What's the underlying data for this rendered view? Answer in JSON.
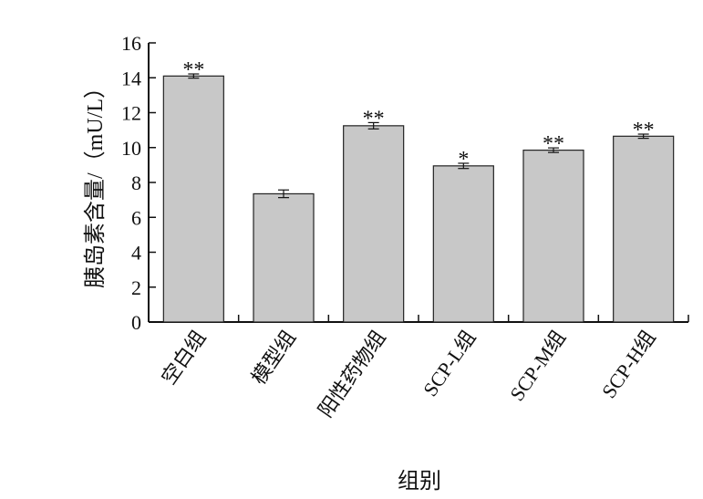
{
  "chart_data": {
    "type": "bar",
    "categories": [
      "空白组",
      "模型组",
      "阳性药物组",
      "SCP-L组",
      "SCP-M组",
      "SCP-H组"
    ],
    "values": [
      14.1,
      7.35,
      11.25,
      8.95,
      9.85,
      10.65
    ],
    "errors": [
      0.12,
      0.22,
      0.18,
      0.15,
      0.13,
      0.12
    ],
    "significance": [
      "**",
      "",
      "**",
      "*",
      "**",
      "**"
    ],
    "xlabel": "组别",
    "ylabel": "胰岛素含量/（mU/L）",
    "ylim": [
      0,
      16
    ],
    "yticks": [
      0,
      2,
      4,
      6,
      8,
      10,
      12,
      14,
      16
    ],
    "grid": false,
    "bar_color": "#c8c8c8"
  }
}
